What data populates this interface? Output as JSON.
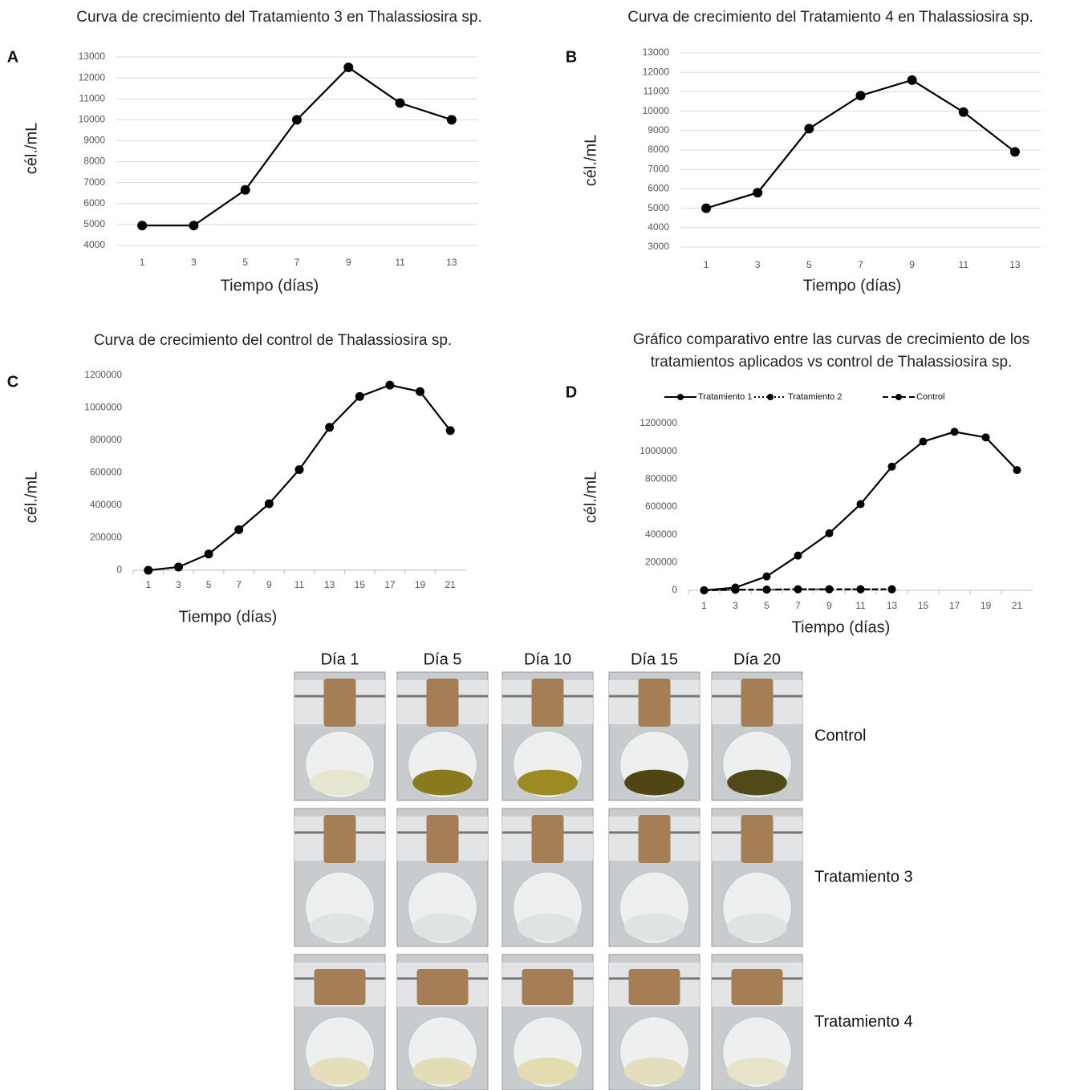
{
  "chart_data": [
    {
      "type": "line",
      "panel_label": "A",
      "title": "Curva de crecimiento del Tratamiento 3 en Thalassiosira sp.",
      "x_label": "Tiempo (días)",
      "y_label": "cél./mL",
      "categories": [
        "1",
        "3",
        "5",
        "7",
        "9",
        "11",
        "13"
      ],
      "series": [
        {
          "color": "#000000",
          "dash": "solid",
          "values": [
            4950,
            4950,
            6650,
            10000,
            12500,
            10800,
            10000
          ]
        }
      ],
      "ylim": [
        4000,
        13000
      ],
      "yticks": [
        4000,
        5000,
        6000,
        7000,
        8000,
        9000,
        10000,
        11000,
        12000,
        13000
      ],
      "grid": true
    },
    {
      "type": "line",
      "panel_label": "B",
      "title": "Curva de crecimiento del Tratamiento 4 en Thalassiosira sp.",
      "x_label": "Tiempo (días)",
      "y_label": "cél./mL",
      "categories": [
        "1",
        "3",
        "5",
        "7",
        "9",
        "11",
        "13"
      ],
      "series": [
        {
          "color": "#000000",
          "dash": "solid",
          "values": [
            5000,
            5800,
            9100,
            10800,
            11600,
            9950,
            7900
          ]
        }
      ],
      "ylim": [
        3000,
        13000
      ],
      "yticks": [
        3000,
        4000,
        5000,
        6000,
        7000,
        8000,
        9000,
        10000,
        11000,
        12000,
        13000
      ],
      "grid": true
    },
    {
      "type": "line",
      "panel_label": "C",
      "title": "Curva de crecimiento del control de Thalassiosira sp.",
      "x_label": "Tiempo (días)",
      "y_label": "cél./mL",
      "categories": [
        "1",
        "3",
        "5",
        "7",
        "9",
        "11",
        "13",
        "15",
        "17",
        "19",
        "21"
      ],
      "series": [
        {
          "color": "#000000",
          "dash": "solid",
          "values": [
            0,
            20000,
            100000,
            250000,
            410000,
            620000,
            880000,
            1070000,
            1140000,
            1100000,
            860000
          ]
        }
      ],
      "ylim": [
        0,
        1200000
      ],
      "yticks": [
        0,
        200000,
        400000,
        600000,
        800000,
        1000000,
        1200000
      ],
      "grid": false
    },
    {
      "type": "line",
      "panel_label": "D",
      "title": "Gráfico comparativo entre las curvas de crecimiento de los tratamientos aplicados vs control de Thalassiosira sp.",
      "x_label": "Tiempo (días)",
      "y_label": "cél./mL",
      "categories": [
        "1",
        "3",
        "5",
        "7",
        "9",
        "11",
        "13",
        "15",
        "17",
        "19",
        "21"
      ],
      "series": [
        {
          "name": "Tratamiento 1",
          "color": "#000000",
          "dash": "solid",
          "values": [
            0,
            20000,
            100000,
            250000,
            410000,
            620000,
            890000,
            1070000,
            1140000,
            1100000,
            865000
          ]
        },
        {
          "name": "Tratamiento 2",
          "color": "#000000",
          "dash": "dotted",
          "values": [
            0,
            5000,
            5000,
            8000,
            8000,
            8000,
            8000,
            null,
            null,
            null,
            null
          ]
        },
        {
          "name": "Control",
          "color": "#000000",
          "dash": "dashed",
          "values": [
            0,
            4000,
            5000,
            7000,
            7000,
            7000,
            7000,
            null,
            null,
            null,
            null
          ]
        }
      ],
      "ylim": [
        0,
        1200000
      ],
      "yticks": [
        0,
        200000,
        400000,
        600000,
        800000,
        1000000,
        1200000
      ],
      "grid": false
    }
  ],
  "photo_grid": {
    "columns": [
      "Día 1",
      "Día 5",
      "Día 10",
      "Día 15",
      "Día 20"
    ],
    "rows": [
      "Control",
      "Tratamiento 3",
      "Tratamiento 4"
    ]
  }
}
